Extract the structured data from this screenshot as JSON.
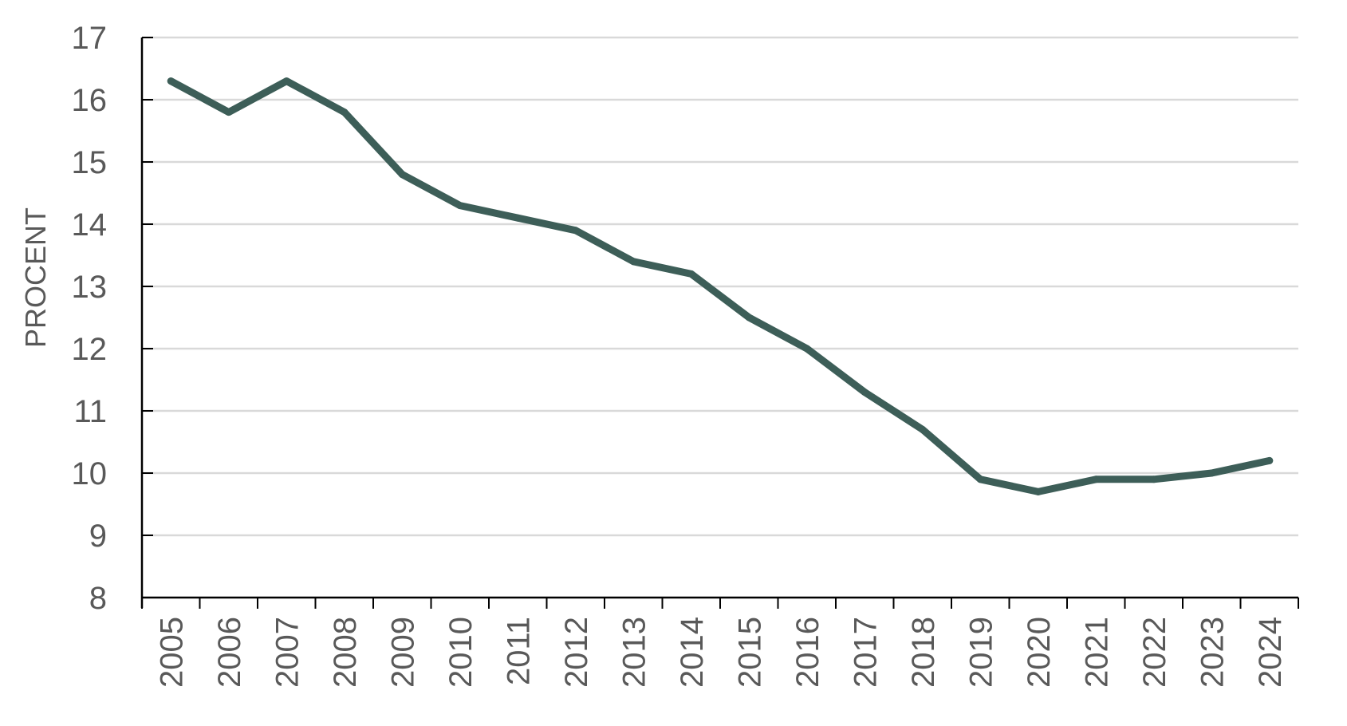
{
  "chart_data": {
    "type": "line",
    "title": "",
    "xlabel": "",
    "ylabel": "PROCENT",
    "ylim": [
      8,
      17
    ],
    "yticks": [
      8,
      9,
      10,
      11,
      12,
      13,
      14,
      15,
      16,
      17
    ],
    "grid": true,
    "legend": "none",
    "categories": [
      "2005",
      "2006",
      "2007",
      "2008",
      "2009",
      "2010",
      "2011",
      "2012",
      "2013",
      "2014",
      "2015",
      "2016",
      "2017",
      "2018",
      "2019",
      "2020",
      "2021",
      "2022",
      "2023",
      "2024"
    ],
    "series": [
      {
        "values": [
          16.3,
          15.8,
          16.3,
          15.8,
          14.8,
          14.3,
          14.1,
          13.9,
          13.4,
          13.2,
          12.5,
          12.0,
          11.3,
          10.7,
          9.9,
          9.7,
          9.9,
          9.9,
          10.0,
          10.2
        ]
      }
    ],
    "colors": {
      "line": "#3d5e58",
      "grid": "#d9d9d9",
      "axis": "#000000",
      "text": "#595959"
    }
  }
}
